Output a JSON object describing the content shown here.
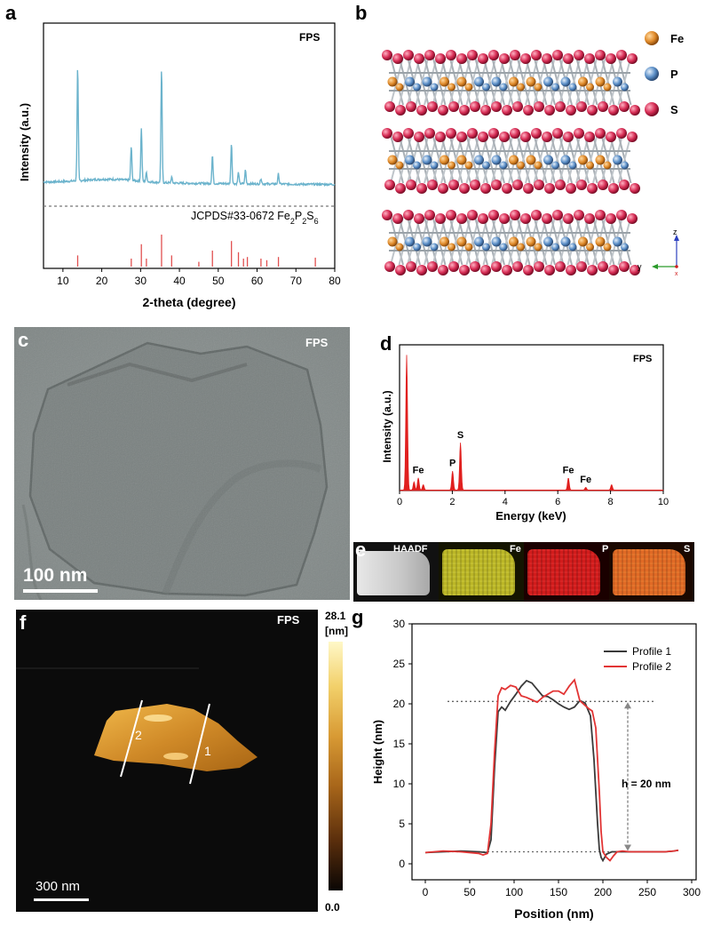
{
  "panels": {
    "a": {
      "letter": "a",
      "sample_label": "FPS",
      "reference_label_prefix": "JCPDS#33-0672 Fe",
      "reference_formula_parts": [
        "2",
        "P",
        "2",
        "S",
        "6"
      ],
      "reference_formula_subs": [
        true,
        false,
        true,
        false,
        true
      ]
    },
    "b": {
      "letter": "b",
      "legend": [
        {
          "label": "Fe",
          "color": "#e08a2a"
        },
        {
          "label": "P",
          "color": "#5b8fc8"
        },
        {
          "label": "S",
          "color": "#d62c54"
        }
      ],
      "axis_labels": {
        "z": "z",
        "y": "y",
        "x": "x"
      }
    },
    "c": {
      "letter": "c",
      "sample_label": "FPS",
      "scale_bar": "100 nm"
    },
    "d": {
      "letter": "d",
      "sample_label": "FPS"
    },
    "e": {
      "letter": "e",
      "tiles": [
        {
          "label": "HAADF",
          "color": "#cfcfcf"
        },
        {
          "label": "Fe",
          "color": "#c9c42a"
        },
        {
          "label": "P",
          "color": "#d81f1f"
        },
        {
          "label": "S",
          "color": "#e06a25"
        }
      ]
    },
    "f": {
      "letter": "f",
      "sample_label": "FPS",
      "colorbar_max": "28.1",
      "colorbar_unit": "[nm]",
      "colorbar_min": "0.0",
      "scale_bar": "300 nm",
      "line_labels": [
        "2",
        "1"
      ]
    },
    "g": {
      "letter": "g",
      "annotation": "h = 20 nm"
    }
  },
  "chart_data": [
    {
      "id": "xrd",
      "type": "line",
      "xlabel": "2-theta (degree)",
      "ylabel": "Intensity (a.u.)",
      "xlim": [
        5,
        80
      ],
      "xticks": [
        10,
        20,
        30,
        40,
        50,
        60,
        70,
        80
      ],
      "grid": false,
      "series": [
        {
          "name": "FPS",
          "color": "#6bb3cc",
          "baseline": 0.13,
          "peaks": [
            {
              "x": 13.8,
              "y": 1.0
            },
            {
              "x": 27.6,
              "y": 0.3
            },
            {
              "x": 30.2,
              "y": 0.47
            },
            {
              "x": 31.5,
              "y": 0.08
            },
            {
              "x": 35.4,
              "y": 1.0
            },
            {
              "x": 38.0,
              "y": 0.05
            },
            {
              "x": 48.5,
              "y": 0.25
            },
            {
              "x": 53.4,
              "y": 0.36
            },
            {
              "x": 55.2,
              "y": 0.1
            },
            {
              "x": 57.0,
              "y": 0.12
            },
            {
              "x": 61.0,
              "y": 0.05
            },
            {
              "x": 65.5,
              "y": 0.09
            }
          ]
        }
      ],
      "reference_lines": {
        "color": "#e15050",
        "x": [
          13.8,
          27.6,
          30.2,
          31.5,
          35.4,
          38.0,
          45.0,
          48.5,
          53.4,
          55.2,
          56.5,
          57.5,
          61.0,
          62.5,
          65.5,
          75.0
        ],
        "y": [
          0.35,
          0.25,
          0.7,
          0.25,
          1.0,
          0.35,
          0.15,
          0.5,
          0.8,
          0.45,
          0.25,
          0.3,
          0.25,
          0.2,
          0.3,
          0.28
        ]
      }
    },
    {
      "id": "eds",
      "type": "area",
      "xlabel": "Energy (keV)",
      "ylabel": "Intensity (a.u.)",
      "xlim": [
        0,
        10
      ],
      "xticks": [
        0,
        2,
        4,
        6,
        8,
        10
      ],
      "grid": false,
      "color": "#e0201f",
      "peaks": [
        {
          "x": 0.27,
          "y": 1.0,
          "label": ""
        },
        {
          "x": 0.55,
          "y": 0.06,
          "label": ""
        },
        {
          "x": 0.71,
          "y": 0.09,
          "label": "Fe"
        },
        {
          "x": 0.9,
          "y": 0.04,
          "label": ""
        },
        {
          "x": 2.01,
          "y": 0.14,
          "label": "P"
        },
        {
          "x": 2.31,
          "y": 0.35,
          "label": "S"
        },
        {
          "x": 6.4,
          "y": 0.09,
          "label": "Fe"
        },
        {
          "x": 7.06,
          "y": 0.02,
          "label": "Fe"
        },
        {
          "x": 8.04,
          "y": 0.04,
          "label": ""
        }
      ]
    },
    {
      "id": "height",
      "type": "line",
      "xlabel": "Position (nm)",
      "ylabel": "Height (nm)",
      "xlim": [
        -15,
        305
      ],
      "ylim": [
        -2,
        30
      ],
      "xticks": [
        0,
        50,
        100,
        150,
        200,
        250,
        300
      ],
      "yticks": [
        0,
        5,
        10,
        15,
        20,
        25,
        30
      ],
      "legend_position": "top-right",
      "grid": false,
      "series": [
        {
          "name": "Profile 1",
          "color": "#3a3a3a",
          "x": [
            0,
            20,
            40,
            60,
            70,
            74,
            78,
            82,
            86,
            90,
            96,
            102,
            108,
            114,
            120,
            126,
            132,
            138,
            144,
            150,
            156,
            162,
            168,
            174,
            180,
            186,
            190,
            194,
            196,
            198,
            200,
            204,
            210,
            216,
            222,
            230,
            240,
            250,
            260,
            270,
            280,
            285
          ],
          "y": [
            1.4,
            1.5,
            1.6,
            1.5,
            1.4,
            3,
            12,
            19,
            19.6,
            19.2,
            20.3,
            21.2,
            22.2,
            22.9,
            22.6,
            21.8,
            21.0,
            20.9,
            20.5,
            20.0,
            19.6,
            19.3,
            19.6,
            20.4,
            20.1,
            18.5,
            13,
            5,
            1.8,
            0.8,
            0.4,
            1.2,
            1.5,
            1.5,
            1.5,
            1.5,
            1.5,
            1.5,
            1.5,
            1.5,
            1.6,
            1.7
          ]
        },
        {
          "name": "Profile 2",
          "color": "#e23434",
          "x": [
            0,
            20,
            40,
            60,
            65,
            70,
            74,
            78,
            82,
            86,
            90,
            96,
            102,
            108,
            114,
            120,
            126,
            132,
            138,
            144,
            150,
            156,
            162,
            168,
            174,
            180,
            184,
            188,
            192,
            196,
            198,
            200,
            204,
            208,
            212,
            216,
            222,
            230,
            240,
            250,
            260,
            270,
            280,
            285
          ],
          "y": [
            1.4,
            1.6,
            1.5,
            1.3,
            1.1,
            1.3,
            5,
            14,
            21,
            22.0,
            21.8,
            22.3,
            22.1,
            21.0,
            20.8,
            20.5,
            20.2,
            20.8,
            21.2,
            21.6,
            21.6,
            21.2,
            22.2,
            23.0,
            20.4,
            19.8,
            19.4,
            19.1,
            17,
            9,
            4,
            1.5,
            0.8,
            0.4,
            1.0,
            1.5,
            1.6,
            1.5,
            1.5,
            1.5,
            1.5,
            1.5,
            1.6,
            1.7
          ]
        }
      ]
    }
  ]
}
